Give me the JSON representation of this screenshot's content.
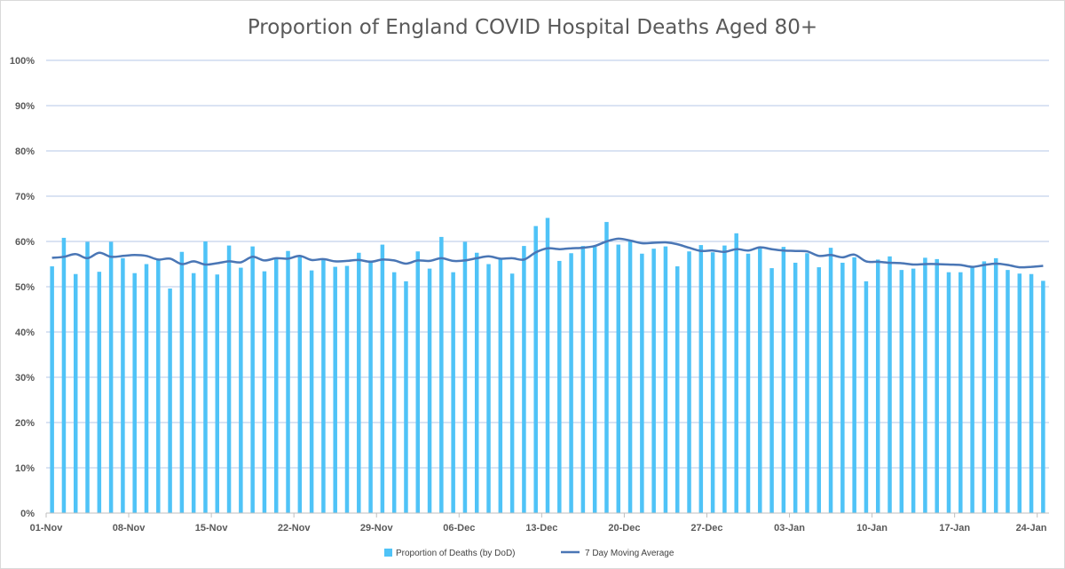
{
  "chart_data": {
    "type": "bar",
    "title": "Proportion of England COVID Hospital Deaths Aged 80+",
    "xlabel": "",
    "ylabel": "",
    "ylim": [
      0,
      100
    ],
    "y_tick_labels": [
      "0%",
      "10%",
      "20%",
      "30%",
      "40%",
      "50%",
      "60%",
      "70%",
      "80%",
      "90%",
      "100%"
    ],
    "x_tick_labels": [
      "01-Nov",
      "08-Nov",
      "15-Nov",
      "22-Nov",
      "29-Nov",
      "06-Dec",
      "13-Dec",
      "20-Dec",
      "27-Dec",
      "03-Jan",
      "10-Jan",
      "17-Jan",
      "24-Jan"
    ],
    "x_start": "01-Nov",
    "x_end": "24-Jan",
    "grid": true,
    "legend_position": "bottom",
    "series": [
      {
        "name": "Proportion of Deaths (by DoD)",
        "type": "bar",
        "color": "#4fc3f7",
        "values": [
          54.5,
          60.8,
          52.8,
          59.9,
          53.3,
          59.9,
          56.3,
          53.0,
          55.0,
          56.0,
          49.6,
          57.7,
          53.0,
          60.0,
          52.7,
          59.1,
          54.2,
          58.9,
          53.4,
          56.4,
          57.9,
          56.8,
          53.6,
          55.9,
          54.4,
          54.6,
          57.5,
          55.8,
          59.3,
          53.2,
          51.2,
          57.8,
          54.0,
          61.0,
          53.2,
          59.9,
          57.5,
          55.0,
          56.3,
          52.9,
          59.0,
          63.4,
          65.2,
          55.7,
          57.4,
          59.0,
          58.9,
          64.3,
          59.3,
          60.3,
          57.3,
          58.4,
          58.9,
          54.5,
          57.8,
          59.2,
          57.6,
          59.1,
          61.8,
          57.3,
          58.5,
          54.1,
          58.8,
          55.3,
          57.4,
          54.3,
          58.6,
          55.3,
          56.5,
          51.2,
          56.0,
          56.7,
          53.7,
          54.0,
          56.4,
          56.1,
          53.2,
          53.2,
          54.5,
          55.6,
          56.3,
          53.7,
          52.9,
          52.8,
          51.3
        ]
      },
      {
        "name": "7 Day Moving Average",
        "type": "line",
        "color": "#4a76b5",
        "values": [
          56.4,
          56.6,
          57.2,
          56.3,
          57.5,
          56.6,
          56.8,
          57.0,
          56.8,
          56.0,
          56.2,
          55.0,
          55.6,
          54.9,
          55.2,
          55.6,
          55.4,
          56.6,
          55.8,
          56.3,
          56.2,
          56.8,
          55.9,
          56.1,
          55.6,
          55.7,
          55.9,
          55.5,
          56.0,
          55.8,
          55.1,
          55.8,
          55.7,
          56.3,
          55.7,
          55.8,
          56.3,
          56.7,
          56.2,
          56.3,
          56.0,
          57.6,
          58.5,
          58.3,
          58.5,
          58.6,
          59.0,
          60.0,
          60.6,
          60.2,
          59.6,
          59.7,
          59.8,
          59.4,
          58.6,
          57.9,
          58.0,
          57.7,
          58.3,
          58.0,
          58.7,
          58.3,
          58.0,
          57.9,
          57.8,
          56.8,
          57.0,
          56.5,
          57.1,
          55.6,
          55.5,
          55.3,
          55.2,
          54.9,
          55.0,
          55.0,
          54.9,
          54.8,
          54.4,
          54.8,
          55.1,
          54.8,
          54.3,
          54.4,
          54.6
        ]
      }
    ]
  }
}
